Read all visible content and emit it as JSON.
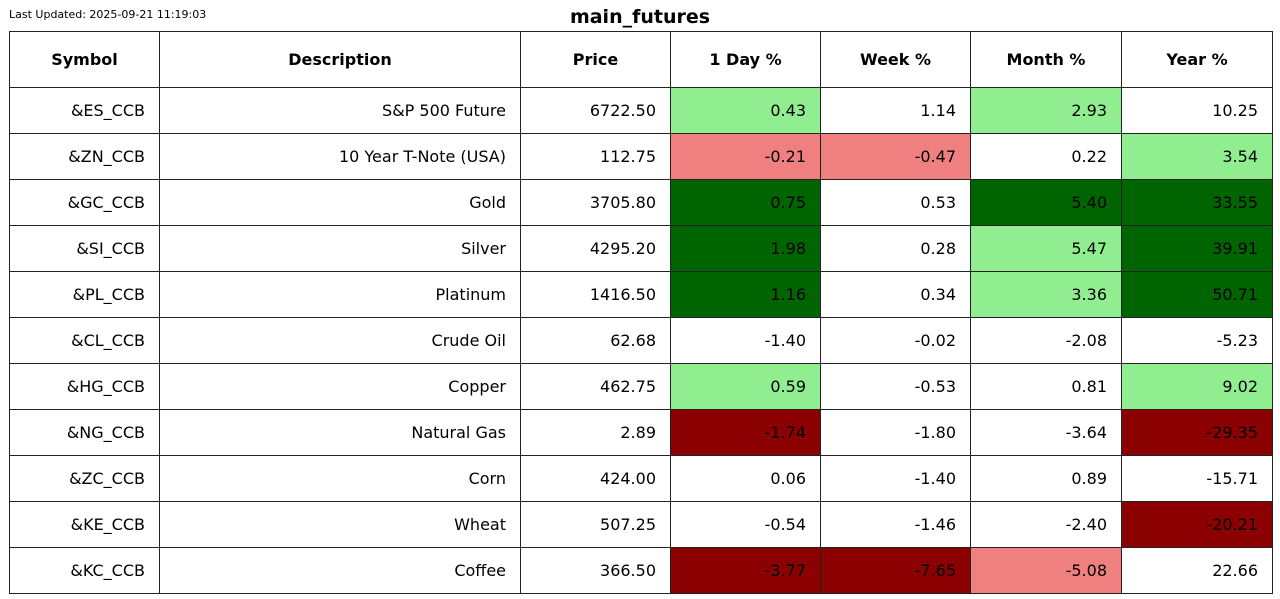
{
  "header": {
    "last_updated": "Last Updated: 2025-09-21 11:19:03",
    "title": "main_futures"
  },
  "colors": {
    "strong_up": "#006400",
    "up": "#90ee90",
    "down": "#f08080",
    "strong_down": "#8b0000",
    "neutral": "#ffffff"
  },
  "chart_data": {
    "type": "table",
    "title": "main_futures",
    "columns": [
      "Symbol",
      "Description",
      "Price",
      "1 Day %",
      "Week %",
      "Month %",
      "Year %"
    ],
    "rows": [
      {
        "symbol": "&ES_CCB",
        "description": "S&P 500 Future",
        "price": "6722.50",
        "day": "0.43",
        "week": "1.14",
        "month": "2.93",
        "year": "10.25",
        "colors": [
          "up",
          "neutral",
          "up",
          "neutral"
        ]
      },
      {
        "symbol": "&ZN_CCB",
        "description": "10 Year T-Note (USA)",
        "price": "112.75",
        "day": "-0.21",
        "week": "-0.47",
        "month": "0.22",
        "year": "3.54",
        "colors": [
          "down",
          "down",
          "neutral",
          "up"
        ]
      },
      {
        "symbol": "&GC_CCB",
        "description": "Gold",
        "price": "3705.80",
        "day": "0.75",
        "week": "0.53",
        "month": "5.40",
        "year": "33.55",
        "colors": [
          "strong_up",
          "neutral",
          "strong_up",
          "strong_up"
        ]
      },
      {
        "symbol": "&SI_CCB",
        "description": "Silver",
        "price": "4295.20",
        "day": "1.98",
        "week": "0.28",
        "month": "5.47",
        "year": "39.91",
        "colors": [
          "strong_up",
          "neutral",
          "up",
          "strong_up"
        ]
      },
      {
        "symbol": "&PL_CCB",
        "description": "Platinum",
        "price": "1416.50",
        "day": "1.16",
        "week": "0.34",
        "month": "3.36",
        "year": "50.71",
        "colors": [
          "strong_up",
          "neutral",
          "up",
          "strong_up"
        ]
      },
      {
        "symbol": "&CL_CCB",
        "description": "Crude Oil",
        "price": "62.68",
        "day": "-1.40",
        "week": "-0.02",
        "month": "-2.08",
        "year": "-5.23",
        "colors": [
          "neutral",
          "neutral",
          "neutral",
          "neutral"
        ]
      },
      {
        "symbol": "&HG_CCB",
        "description": "Copper",
        "price": "462.75",
        "day": "0.59",
        "week": "-0.53",
        "month": "0.81",
        "year": "9.02",
        "colors": [
          "up",
          "neutral",
          "neutral",
          "up"
        ]
      },
      {
        "symbol": "&NG_CCB",
        "description": "Natural Gas",
        "price": "2.89",
        "day": "-1.74",
        "week": "-1.80",
        "month": "-3.64",
        "year": "-29.35",
        "colors": [
          "strong_down",
          "neutral",
          "neutral",
          "strong_down"
        ]
      },
      {
        "symbol": "&ZC_CCB",
        "description": "Corn",
        "price": "424.00",
        "day": "0.06",
        "week": "-1.40",
        "month": "0.89",
        "year": "-15.71",
        "colors": [
          "neutral",
          "neutral",
          "neutral",
          "neutral"
        ]
      },
      {
        "symbol": "&KE_CCB",
        "description": "Wheat",
        "price": "507.25",
        "day": "-0.54",
        "week": "-1.46",
        "month": "-2.40",
        "year": "-20.21",
        "colors": [
          "neutral",
          "neutral",
          "neutral",
          "strong_down"
        ]
      },
      {
        "symbol": "&KC_CCB",
        "description": "Coffee",
        "price": "366.50",
        "day": "-3.77",
        "week": "-7.65",
        "month": "-5.08",
        "year": "22.66",
        "colors": [
          "strong_down",
          "strong_down",
          "down",
          "neutral"
        ]
      }
    ]
  }
}
